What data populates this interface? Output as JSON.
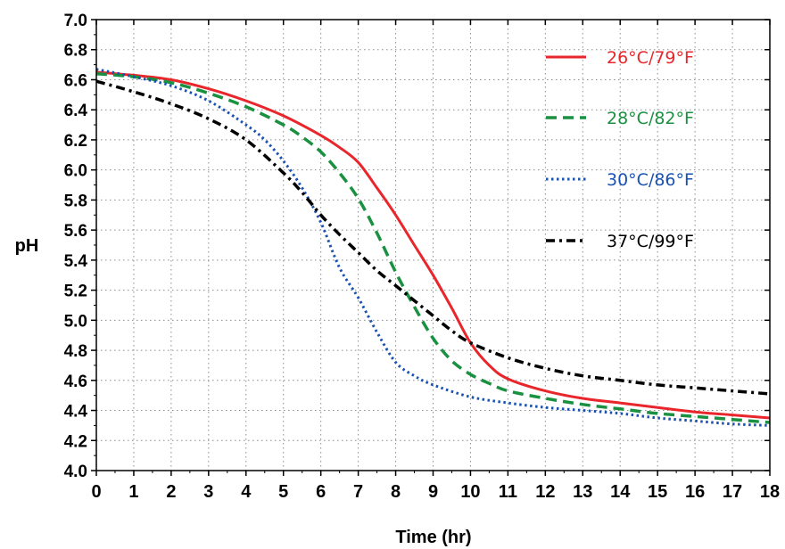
{
  "chart_data": {
    "type": "line",
    "title": "",
    "xlabel": "Time (hr)",
    "ylabel": "pH",
    "xlim": [
      0,
      18
    ],
    "ylim": [
      4.0,
      7.0
    ],
    "x_ticks": [
      "0",
      "1",
      "2",
      "3",
      "4",
      "5",
      "6",
      "7",
      "8",
      "9",
      "10",
      "11",
      "12",
      "13",
      "14",
      "15",
      "16",
      "17",
      "18"
    ],
    "y_ticks": [
      "4.0",
      "4.2",
      "4.4",
      "4.6",
      "4.8",
      "5.0",
      "5.2",
      "5.4",
      "5.6",
      "5.8",
      "6.0",
      "6.2",
      "6.4",
      "6.6",
      "6.8",
      "7.0"
    ],
    "grid": true,
    "legend_position": "top-right",
    "series": [
      {
        "name": "26°C/79°F",
        "color": "#e8262b",
        "line_style": "solid",
        "x": [
          0,
          1,
          2,
          3,
          4,
          5,
          6,
          6.5,
          7,
          7.5,
          8,
          8.5,
          9,
          9.5,
          10,
          10.5,
          11,
          12,
          13,
          14,
          15,
          16,
          17,
          18
        ],
        "y": [
          6.65,
          6.63,
          6.6,
          6.54,
          6.46,
          6.36,
          6.23,
          6.15,
          6.05,
          5.88,
          5.7,
          5.5,
          5.3,
          5.08,
          4.85,
          4.7,
          4.61,
          4.53,
          4.48,
          4.45,
          4.42,
          4.39,
          4.37,
          4.35
        ]
      },
      {
        "name": "28°C/82°F",
        "color": "#1a9140",
        "line_style": "dashed",
        "x": [
          0,
          1,
          2,
          3,
          4,
          5,
          5.5,
          6,
          6.5,
          7,
          7.5,
          8,
          8.5,
          9,
          9.5,
          10,
          10.5,
          11,
          12,
          13,
          14,
          15,
          16,
          17,
          18
        ],
        "y": [
          6.64,
          6.62,
          6.58,
          6.51,
          6.42,
          6.3,
          6.22,
          6.12,
          5.98,
          5.81,
          5.58,
          5.32,
          5.09,
          4.88,
          4.73,
          4.64,
          4.58,
          4.53,
          4.48,
          4.44,
          4.41,
          4.38,
          4.36,
          4.34,
          4.32
        ]
      },
      {
        "name": "30°C/86°F",
        "color": "#1a52b3",
        "line_style": "dotted",
        "x": [
          0,
          1,
          2,
          3,
          4,
          4.5,
          5,
          5.5,
          6,
          6.5,
          7,
          7.5,
          8,
          8.5,
          9,
          10,
          11,
          12,
          13,
          14,
          15,
          16,
          17,
          18
        ],
        "y": [
          6.67,
          6.62,
          6.56,
          6.46,
          6.3,
          6.2,
          6.06,
          5.88,
          5.65,
          5.35,
          5.15,
          4.92,
          4.72,
          4.63,
          4.57,
          4.49,
          4.45,
          4.42,
          4.4,
          4.38,
          4.35,
          4.33,
          4.31,
          4.3
        ]
      },
      {
        "name": "37°C/99°F",
        "color": "#000000",
        "line_style": "dash-dot",
        "x": [
          0,
          1,
          2,
          3,
          4,
          5,
          5.5,
          6,
          6.5,
          7,
          7.5,
          8,
          8.5,
          9,
          9.5,
          10,
          11,
          12,
          13,
          14,
          15,
          16,
          17,
          18
        ],
        "y": [
          6.59,
          6.52,
          6.44,
          6.34,
          6.2,
          5.98,
          5.85,
          5.7,
          5.57,
          5.45,
          5.33,
          5.23,
          5.13,
          5.03,
          4.93,
          4.85,
          4.75,
          4.68,
          4.63,
          4.6,
          4.57,
          4.55,
          4.53,
          4.51
        ]
      }
    ]
  }
}
